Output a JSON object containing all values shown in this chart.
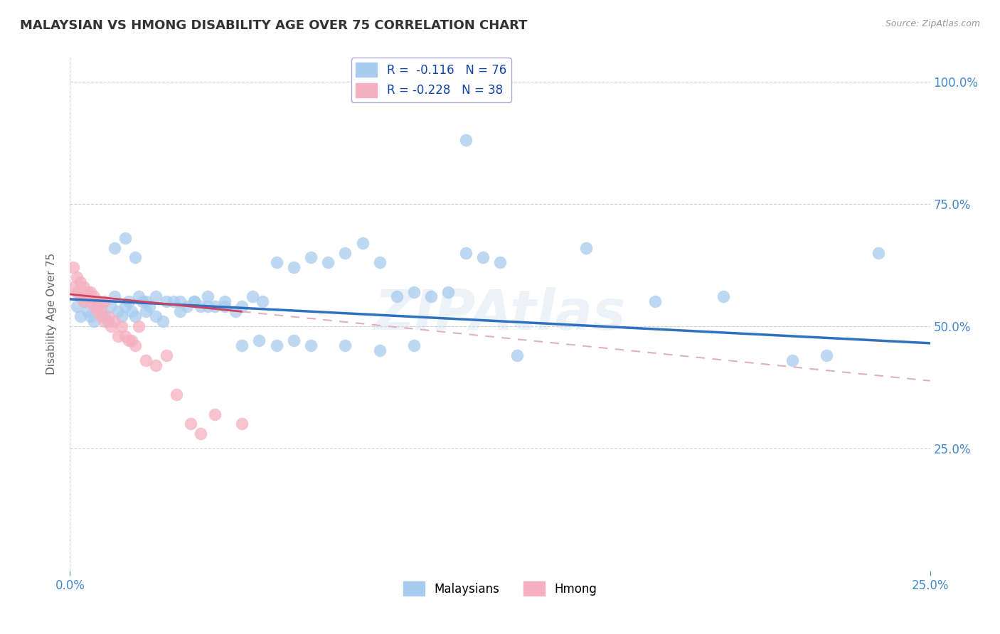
{
  "title": "MALAYSIAN VS HMONG DISABILITY AGE OVER 75 CORRELATION CHART",
  "source": "Source: ZipAtlas.com",
  "ylabel": "Disability Age Over 75",
  "xlim": [
    0.0,
    0.25
  ],
  "ylim": [
    0.0,
    1.05
  ],
  "ytick_vals": [
    0.25,
    0.5,
    0.75,
    1.0
  ],
  "xtick_vals": [
    0.0,
    0.25
  ],
  "malaysians_R": -0.116,
  "malaysians_N": 76,
  "hmong_R": -0.228,
  "hmong_N": 38,
  "malaysian_color": "#a8ccee",
  "hmong_color": "#f5afc0",
  "trend_malaysian_color": "#3070c0",
  "trend_hmong_solid_color": "#d04060",
  "trend_hmong_dash_color": "#e0b0bb",
  "watermark": "ZIPAtlas",
  "background_color": "#ffffff",
  "grid_color": "#cccccc",
  "malaysians_x": [
    0.002,
    0.003,
    0.004,
    0.005,
    0.006,
    0.007,
    0.008,
    0.009,
    0.01,
    0.011,
    0.012,
    0.013,
    0.014,
    0.015,
    0.016,
    0.017,
    0.018,
    0.019,
    0.02,
    0.021,
    0.022,
    0.023,
    0.025,
    0.027,
    0.03,
    0.032,
    0.034,
    0.036,
    0.038,
    0.04,
    0.042,
    0.045,
    0.048,
    0.05,
    0.053,
    0.056,
    0.06,
    0.065,
    0.07,
    0.075,
    0.08,
    0.085,
    0.09,
    0.095,
    0.1,
    0.105,
    0.11,
    0.115,
    0.12,
    0.125,
    0.013,
    0.016,
    0.019,
    0.022,
    0.025,
    0.028,
    0.032,
    0.036,
    0.04,
    0.045,
    0.05,
    0.055,
    0.06,
    0.065,
    0.07,
    0.08,
    0.09,
    0.1,
    0.115,
    0.13,
    0.15,
    0.17,
    0.19,
    0.21,
    0.22,
    0.235
  ],
  "malaysians_y": [
    0.54,
    0.52,
    0.55,
    0.53,
    0.52,
    0.51,
    0.54,
    0.53,
    0.52,
    0.51,
    0.54,
    0.56,
    0.53,
    0.52,
    0.54,
    0.55,
    0.53,
    0.52,
    0.56,
    0.55,
    0.53,
    0.54,
    0.52,
    0.51,
    0.55,
    0.53,
    0.54,
    0.55,
    0.54,
    0.56,
    0.54,
    0.55,
    0.53,
    0.54,
    0.56,
    0.55,
    0.63,
    0.62,
    0.64,
    0.63,
    0.65,
    0.67,
    0.63,
    0.56,
    0.57,
    0.56,
    0.57,
    0.65,
    0.64,
    0.63,
    0.66,
    0.68,
    0.64,
    0.55,
    0.56,
    0.55,
    0.55,
    0.55,
    0.54,
    0.54,
    0.46,
    0.47,
    0.46,
    0.47,
    0.46,
    0.46,
    0.45,
    0.46,
    0.88,
    0.44,
    0.66,
    0.55,
    0.56,
    0.43,
    0.44,
    0.65
  ],
  "hmong_x": [
    0.001,
    0.001,
    0.002,
    0.002,
    0.003,
    0.003,
    0.004,
    0.004,
    0.005,
    0.005,
    0.006,
    0.006,
    0.007,
    0.007,
    0.008,
    0.008,
    0.009,
    0.009,
    0.01,
    0.01,
    0.011,
    0.012,
    0.013,
    0.014,
    0.015,
    0.016,
    0.017,
    0.018,
    0.019,
    0.02,
    0.022,
    0.025,
    0.028,
    0.031,
    0.035,
    0.038,
    0.042,
    0.05
  ],
  "hmong_y": [
    0.62,
    0.58,
    0.6,
    0.57,
    0.59,
    0.56,
    0.58,
    0.55,
    0.57,
    0.56,
    0.57,
    0.55,
    0.56,
    0.54,
    0.55,
    0.53,
    0.54,
    0.52,
    0.55,
    0.51,
    0.52,
    0.5,
    0.51,
    0.48,
    0.5,
    0.48,
    0.47,
    0.47,
    0.46,
    0.5,
    0.43,
    0.42,
    0.44,
    0.36,
    0.3,
    0.28,
    0.32,
    0.3
  ]
}
